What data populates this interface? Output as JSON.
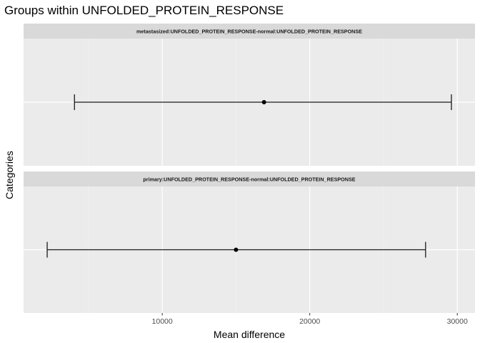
{
  "chart_data": {
    "type": "errorbar",
    "title": "Groups within UNFOLDED_PROTEIN_RESPONSE",
    "xlabel": "Mean difference",
    "ylabel": "Categories",
    "xlim": [
      600,
      31200
    ],
    "x_ticks": [
      {
        "value": 10000,
        "label": "10000"
      },
      {
        "value": 20000,
        "label": "20000"
      },
      {
        "value": 30000,
        "label": "30000"
      }
    ],
    "x_minor_ticks": [
      5000,
      15000,
      25000
    ],
    "grid": true,
    "facets": [
      {
        "label": "metastasized:UNFOLDED_PROTEIN_RESPONSE-normal:UNFOLDED_PROTEIN_RESPONSE",
        "estimate": 16900,
        "lower": 4050,
        "upper": 29600
      },
      {
        "label": "primary:UNFOLDED_PROTEIN_RESPONSE-normal:UNFOLDED_PROTEIN_RESPONSE",
        "estimate": 15000,
        "lower": 2200,
        "upper": 27850
      }
    ]
  }
}
